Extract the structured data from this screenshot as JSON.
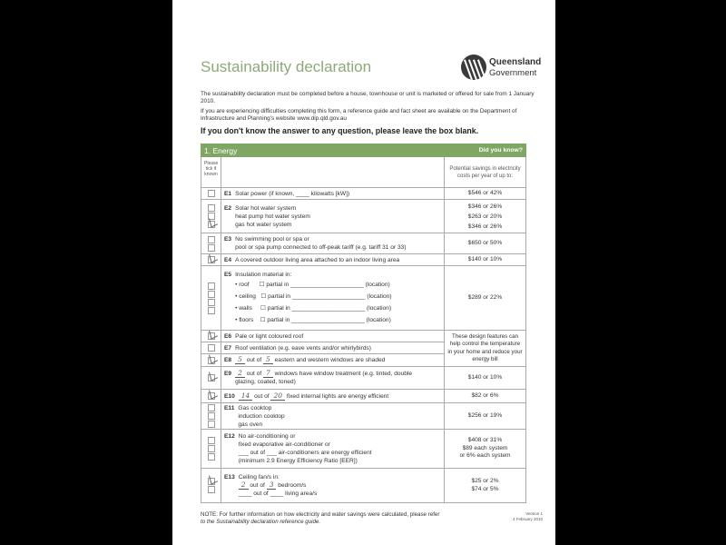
{
  "title": "Sustainability declaration",
  "logo": {
    "line1": "Queensland",
    "line2": "Government"
  },
  "intro": [
    "The sustainability declaration must be completed before a house, townhouse or unit is marketed or offered for sale from 1 January 2010.",
    "If you are experiencing difficulties completing this form, a reference guide and fact sheet are available on the Department of Infrastructure and Planning's website www.dip.qld.gov.au"
  ],
  "warning": "If you don't know the answer to any question, please leave the box blank.",
  "table": {
    "section": "1. Energy",
    "did_you_know": "Did you know?",
    "tick_header": "Please tick if known",
    "savings_header": "Potential savings in electricity costs per year of up to:",
    "rows": [
      {
        "code": "E1",
        "ticks": [
          false
        ],
        "lines": [
          [
            "Solar power (if known, ____ kilowatts [kW])"
          ]
        ],
        "savings": [
          "$546 or 42%"
        ]
      },
      {
        "code": "E2",
        "ticks": [
          false,
          false,
          true
        ],
        "lines": [
          [
            "Solar hot water system"
          ],
          [
            "heat pump hot water system"
          ],
          [
            "gas hot water system"
          ]
        ],
        "savings": [
          "$346 or 26%",
          "$263 or 20%",
          "$346 or 26%"
        ]
      },
      {
        "code": "E3",
        "ticks": [
          false,
          false
        ],
        "lines": [
          [
            "No swimming pool or spa or"
          ],
          [
            "pool or spa pump connected to off-peak tariff (e.g. tariff 31 or 33)"
          ]
        ],
        "savings": [
          "$650 or 50%"
        ]
      },
      {
        "code": "E4",
        "ticks": [
          true
        ],
        "lines": [
          [
            "A covered outdoor living area attached to an indoor living area"
          ]
        ],
        "savings": [
          "$140 or 10%"
        ]
      },
      {
        "code": "E5",
        "ticks": [
          false,
          false,
          false,
          false
        ],
        "lines": [
          [
            "Insulation material in:"
          ],
          [
            "• roof      ☐ partial in ______________________ (location)"
          ],
          [
            "• ceiling   ☐ partial in ______________________ (location)"
          ],
          [
            "• walls     ☐ partial in ______________________ (location)"
          ],
          [
            "• floors    ☐ partial in ______________________ (location)"
          ]
        ],
        "savings": [
          "$289 or 22%"
        ]
      },
      {
        "code": "E6",
        "ticks": [
          true
        ],
        "lines": [
          [
            "Pale or light coloured roof"
          ]
        ],
        "savings": [
          "These design features can help control the temperature in your home and reduce your energy bill"
        ],
        "span": 3
      },
      {
        "code": "E7",
        "ticks": [
          false
        ],
        "lines": [
          [
            "Roof ventilation (e.g. eave vents and/or whirlybirds)"
          ]
        ]
      },
      {
        "code": "E8",
        "ticks": [
          true
        ],
        "lines": [
          [
            {
              "hw": "5"
            },
            " out of ",
            {
              "hw": "5"
            },
            " eastern and western windows are shaded"
          ]
        ]
      },
      {
        "code": "E9",
        "ticks": [
          true
        ],
        "lines": [
          [
            {
              "hw": "2"
            },
            " out of ",
            {
              "hw": "7"
            },
            " windows have window treatment (e.g. tinted, double"
          ],
          [
            "glazing, coated, toned)"
          ]
        ],
        "savings": [
          "$140 or 10%"
        ]
      },
      {
        "code": "E10",
        "ticks": [
          true
        ],
        "lines": [
          [
            {
              "hw": "14"
            },
            " out of ",
            {
              "hw": "20"
            },
            " fixed internal lights are energy efficient"
          ]
        ],
        "savings": [
          "$82 or 6%"
        ]
      },
      {
        "code": "E11",
        "ticks": [
          false,
          false,
          false
        ],
        "lines": [
          [
            "Gas cooktop"
          ],
          [
            "induction cooktop"
          ],
          [
            "gas oven"
          ]
        ],
        "savings": [
          "$256 or 19%"
        ]
      },
      {
        "code": "E12",
        "ticks": [
          false,
          false,
          false
        ],
        "lines": [
          [
            "No air-conditioning or"
          ],
          [
            "fixed evaporative air-conditioner or"
          ],
          [
            "___ out of ___ air-conditioners are energy efficient"
          ],
          [
            "(minimum 2.9 Energy Efficiency Ratio [EER])"
          ]
        ],
        "savings": [
          "$408 or 31%",
          "$89 each system",
          "or 6% each system"
        ]
      },
      {
        "code": "E13",
        "ticks": [
          true,
          false
        ],
        "lines": [
          [
            "Ceiling fan/s in:"
          ],
          [
            {
              "hw": "2"
            },
            " out of ",
            {
              "hw": "3"
            },
            " bedroom/s"
          ],
          [
            "____ out of ____ living area/s"
          ]
        ],
        "savings": [
          "$25 or 2%",
          "$74 or 5%"
        ]
      }
    ]
  },
  "note": [
    "NOTE: For further information on how electricity and water savings were calculated, please refer",
    "to the Sustainability declaration reference guide."
  ],
  "version": [
    "Version 1",
    "4 February 2010"
  ],
  "colors": {
    "section_bar": "#7fa763",
    "title": "#8fa87a"
  }
}
